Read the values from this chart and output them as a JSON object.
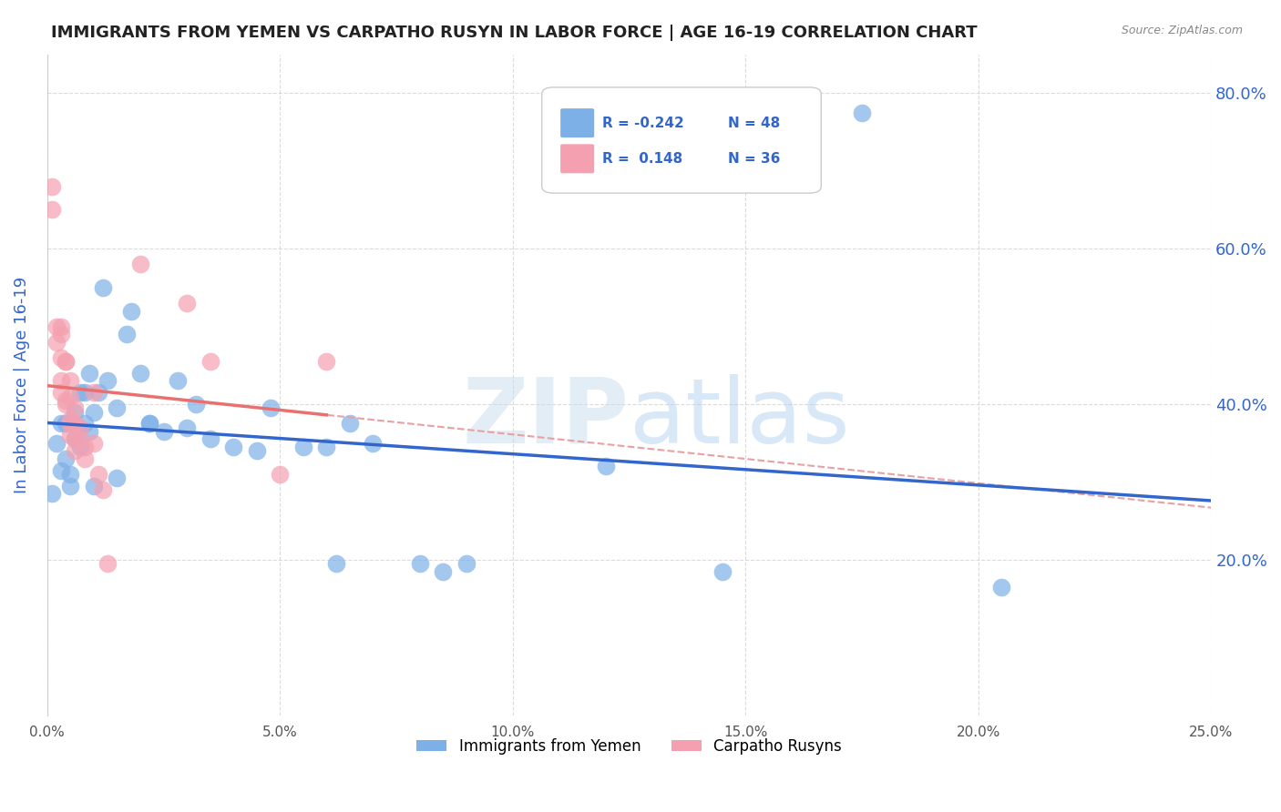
{
  "title": "IMMIGRANTS FROM YEMEN VS CARPATHO RUSYN IN LABOR FORCE | AGE 16-19 CORRELATION CHART",
  "source": "Source: ZipAtlas.com",
  "xlabel": "",
  "ylabel": "In Labor Force | Age 16-19",
  "xlim": [
    0.0,
    0.25
  ],
  "ylim": [
    0.0,
    0.85
  ],
  "yticks": [
    0.2,
    0.4,
    0.6,
    0.8
  ],
  "xticks": [
    0.0,
    0.05,
    0.1,
    0.15,
    0.2,
    0.25
  ],
  "legend_r1": "R = -0.242",
  "legend_n1": "N = 48",
  "legend_r2": "R =  0.148",
  "legend_n2": "N = 36",
  "blue_color": "#7EB0E8",
  "pink_color": "#F4A0B0",
  "trend_blue": "#3366CC",
  "trend_pink": "#E87070",
  "trend_pink_dash": "#E8A0A0",
  "ylabel_color": "#3366CC",
  "yticklabel_color": "#3366CC",
  "xticklabel_color": "#555555",
  "blue_points_x": [
    0.001,
    0.002,
    0.003,
    0.003,
    0.004,
    0.004,
    0.005,
    0.005,
    0.006,
    0.006,
    0.007,
    0.007,
    0.008,
    0.008,
    0.009,
    0.009,
    0.01,
    0.01,
    0.011,
    0.012,
    0.013,
    0.015,
    0.015,
    0.017,
    0.018,
    0.02,
    0.022,
    0.022,
    0.025,
    0.028,
    0.03,
    0.032,
    0.035,
    0.04,
    0.045,
    0.048,
    0.055,
    0.06,
    0.062,
    0.065,
    0.07,
    0.08,
    0.085,
    0.09,
    0.12,
    0.145,
    0.175,
    0.205
  ],
  "blue_points_y": [
    0.285,
    0.35,
    0.375,
    0.315,
    0.375,
    0.33,
    0.31,
    0.295,
    0.39,
    0.355,
    0.345,
    0.415,
    0.375,
    0.415,
    0.44,
    0.365,
    0.39,
    0.295,
    0.415,
    0.55,
    0.43,
    0.395,
    0.305,
    0.49,
    0.52,
    0.44,
    0.375,
    0.375,
    0.365,
    0.43,
    0.37,
    0.4,
    0.355,
    0.345,
    0.34,
    0.395,
    0.345,
    0.345,
    0.195,
    0.375,
    0.35,
    0.195,
    0.185,
    0.195,
    0.32,
    0.185,
    0.775,
    0.165
  ],
  "pink_points_x": [
    0.001,
    0.001,
    0.002,
    0.002,
    0.003,
    0.003,
    0.003,
    0.003,
    0.003,
    0.004,
    0.004,
    0.004,
    0.004,
    0.005,
    0.005,
    0.005,
    0.005,
    0.005,
    0.006,
    0.006,
    0.006,
    0.006,
    0.007,
    0.007,
    0.008,
    0.008,
    0.01,
    0.01,
    0.011,
    0.012,
    0.013,
    0.02,
    0.03,
    0.035,
    0.05,
    0.06
  ],
  "pink_points_y": [
    0.65,
    0.68,
    0.48,
    0.5,
    0.5,
    0.49,
    0.46,
    0.43,
    0.415,
    0.455,
    0.455,
    0.405,
    0.4,
    0.43,
    0.41,
    0.38,
    0.375,
    0.36,
    0.395,
    0.375,
    0.355,
    0.34,
    0.37,
    0.355,
    0.345,
    0.33,
    0.415,
    0.35,
    0.31,
    0.29,
    0.195,
    0.58,
    0.53,
    0.455,
    0.31,
    0.455
  ]
}
